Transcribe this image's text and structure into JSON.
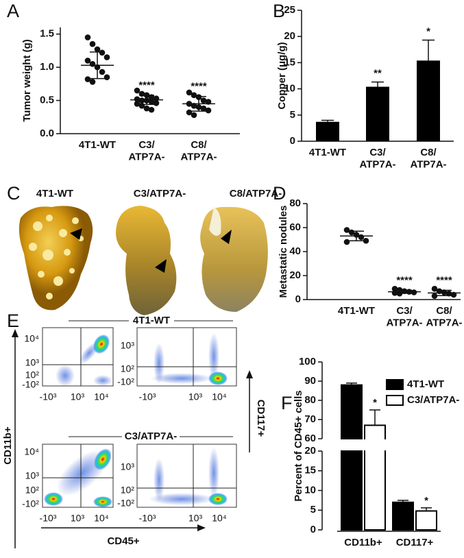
{
  "panel_letters": [
    "A",
    "B",
    "C",
    "D",
    "E",
    "F"
  ],
  "chart_data": [
    {
      "type": "dotplot",
      "ylabel": "Tumor weight (g)",
      "categories": [
        "4T1-WT",
        "C3/\nATP7A-",
        "C8/\nATP7A-"
      ],
      "points": [
        [
          1.45,
          1.35,
          1.27,
          1.22,
          1.15,
          1.1,
          1.05,
          1.0,
          0.93,
          0.85,
          0.82,
          0.78
        ],
        [
          0.65,
          0.6,
          0.58,
          0.55,
          0.53,
          0.52,
          0.5,
          0.5,
          0.48,
          0.46,
          0.45,
          0.42,
          0.38,
          0.36
        ],
        [
          0.62,
          0.58,
          0.55,
          0.5,
          0.48,
          0.45,
          0.42,
          0.4,
          0.38,
          0.35,
          0.32,
          0.28
        ]
      ],
      "means": [
        1.03,
        0.51,
        0.45
      ],
      "sds": [
        0.2,
        0.07,
        0.11
      ],
      "annotations": [
        null,
        "****",
        "****"
      ],
      "color": "#111111",
      "ylim": [
        0,
        1.6
      ],
      "yticks": [
        {
          "value": 0,
          "label": "0.0"
        },
        0.5,
        {
          "value": 1,
          "label": "1.0"
        },
        1.5
      ]
    },
    {
      "type": "bar",
      "ylabel": "Copper (μg/g)",
      "categories": [
        "4T1-WT",
        "C3/\nATP7A-",
        "C8/\nATP7A-"
      ],
      "values": [
        3.7,
        10.4,
        15.4
      ],
      "errors": [
        0.3,
        0.9,
        3.9
      ],
      "annotations": [
        null,
        "**",
        "*"
      ],
      "color": "#000000",
      "ylim": [
        0,
        25
      ],
      "yticks": [
        0,
        5,
        10,
        15,
        20,
        25
      ]
    },
    {
      "type": "dotplot",
      "ylabel": "Metastatic nodules",
      "categories": [
        "4T1-WT",
        "C3/\nATP7A-",
        "C8/\nATP7A-"
      ],
      "points": [
        [
          58,
          56,
          54,
          52,
          49,
          48
        ],
        [
          9,
          8,
          7,
          6.5,
          6,
          5.5,
          5
        ],
        [
          9,
          7,
          6,
          5,
          4,
          3
        ]
      ],
      "means": [
        53,
        6.5,
        5.5
      ],
      "sds": [
        4,
        1.3,
        2.2
      ],
      "annotations": [
        null,
        "****",
        "****"
      ],
      "color": "#111111",
      "ylim": [
        0,
        80
      ],
      "yticks": [
        0,
        20,
        40,
        60,
        80
      ]
    },
    {
      "type": "broken_bar",
      "ylabel": "Percent of CD45+ cells",
      "categories": [
        "CD11b+",
        "CD117+"
      ],
      "series": [
        {
          "name": "4T1-WT",
          "color": "#000000",
          "values": [
            88,
            7
          ],
          "errors": [
            1,
            0.5
          ]
        },
        {
          "name": "C3/ATP7A-",
          "color": "#ffffff",
          "values": [
            67,
            4.8
          ],
          "errors": [
            8,
            0.8
          ],
          "annotations": [
            "*",
            "*"
          ]
        }
      ],
      "segments": [
        {
          "ylim": [
            0,
            20
          ],
          "yticks": [
            0,
            5,
            10,
            15,
            20
          ]
        },
        {
          "ylim": [
            60,
            100
          ],
          "yticks": [
            60,
            70,
            80,
            90,
            100
          ]
        }
      ]
    }
  ],
  "photos": {
    "labels": [
      "4T1-WT",
      "C3/ATP7A-",
      "C8/ATP7A-"
    ]
  },
  "flow": {
    "groups": [
      "4T1-WT",
      "C3/ATP7A-"
    ],
    "xlabel": "CD45+",
    "ylabel_left": "CD11b+",
    "ylabel_right": "CD117+",
    "xticks": [
      "-10³",
      "10³",
      "10⁴"
    ],
    "yticks_left": [
      "10⁴",
      "10³",
      "10²",
      "-10²"
    ],
    "yticks_right": [
      "10³",
      "10²",
      "-10²"
    ]
  }
}
